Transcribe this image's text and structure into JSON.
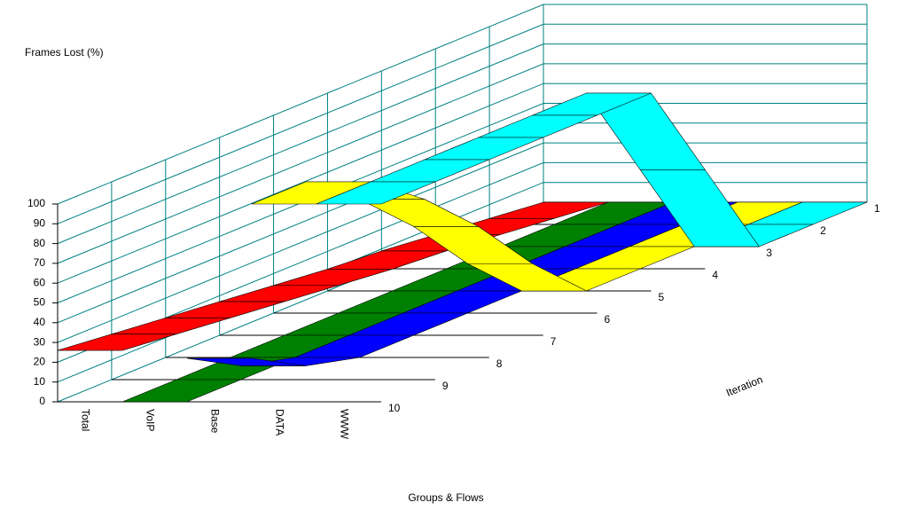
{
  "chart_data": {
    "type": "ribbon3d",
    "ylabel": "Frames Lost (%)",
    "xlabel": "Groups & Flows",
    "zlabel": "Iteration",
    "x": [
      1,
      2,
      3,
      4,
      5,
      6,
      7,
      8,
      9,
      10
    ],
    "xlim": [
      1,
      10
    ],
    "ylim": [
      0,
      100
    ],
    "yticks": [
      0,
      10,
      20,
      30,
      40,
      50,
      60,
      70,
      80,
      90,
      100
    ],
    "grid": true,
    "series": [
      {
        "name": "Total",
        "color": "#ff0000",
        "values": [
          0,
          3,
          6,
          9,
          11,
          14,
          17,
          20,
          23,
          26
        ]
      },
      {
        "name": "VoIP",
        "color": "#008000",
        "values": [
          0,
          0,
          0,
          0,
          0,
          0,
          0,
          0,
          0,
          0
        ]
      },
      {
        "name": "Base",
        "color": "#0000ff",
        "values": [
          0,
          0,
          0,
          0,
          0,
          0,
          0,
          0,
          7,
          22
        ]
      },
      {
        "name": "DATA",
        "color": "#ffff00",
        "values": [
          0,
          0,
          0,
          0,
          0,
          25,
          55,
          80,
          100,
          100
        ]
      },
      {
        "name": "WWW",
        "color": "#00ffff",
        "values": [
          0,
          0,
          0,
          50,
          100,
          100,
          100,
          100,
          100,
          100
        ]
      }
    ]
  }
}
